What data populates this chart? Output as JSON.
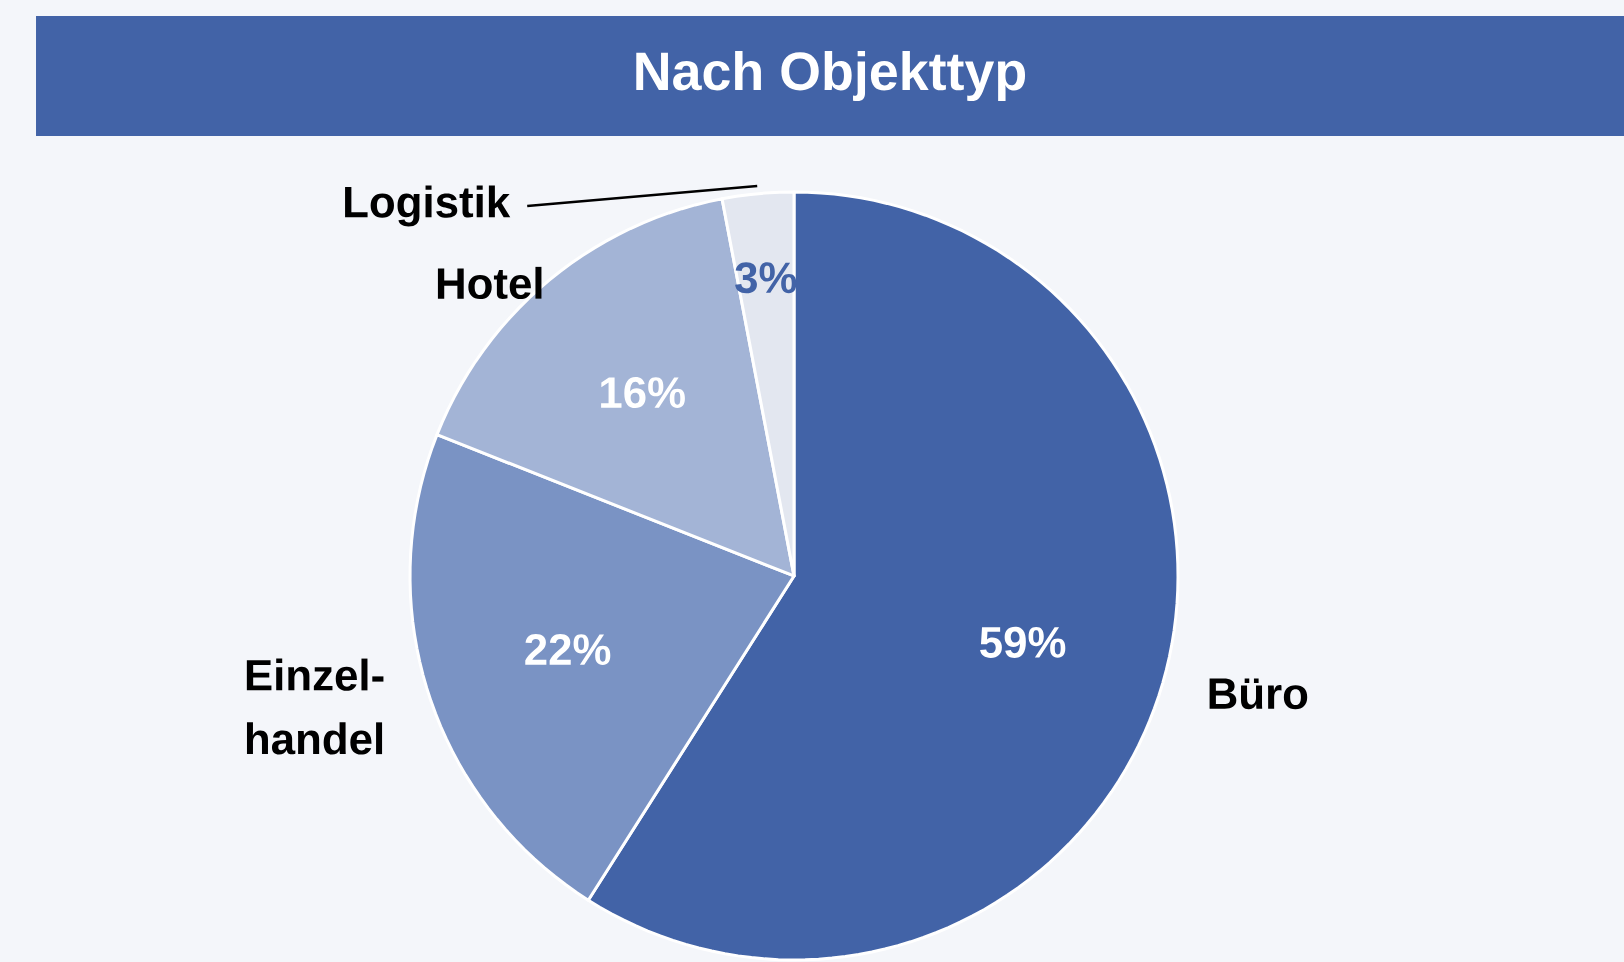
{
  "chart_data": {
    "type": "pie",
    "title": "Nach Objekttyp",
    "categories": [
      "Büro",
      "Einzel-handel",
      "Hotel",
      "Logistik"
    ],
    "values": [
      59,
      22,
      16,
      3
    ],
    "colors": [
      "#4263a7",
      "#7a93c4",
      "#a3b4d6",
      "#e3e7f0"
    ],
    "value_labels": [
      "59%",
      "22%",
      "16%",
      "3%"
    ]
  }
}
